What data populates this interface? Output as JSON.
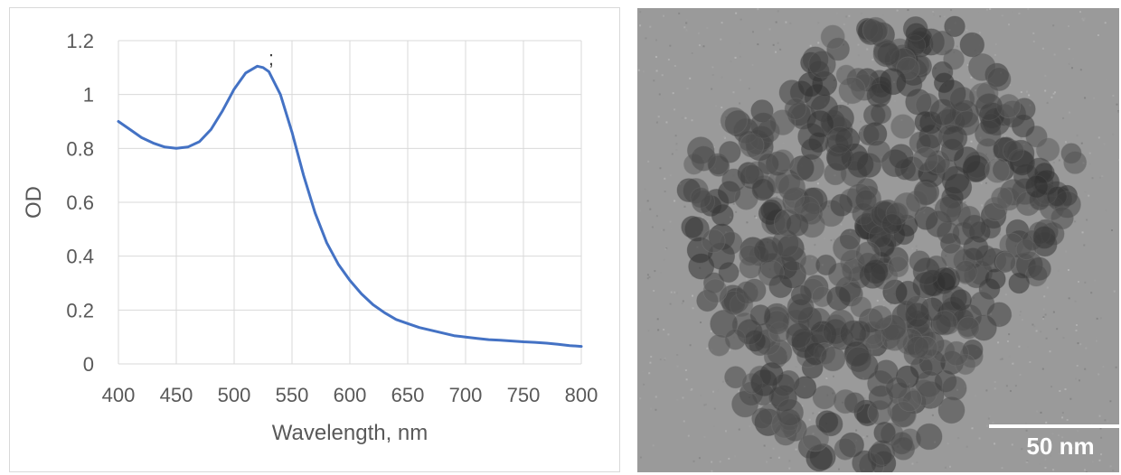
{
  "chart_data": {
    "type": "line",
    "title": "",
    "xlabel": "Wavelength, nm",
    "ylabel": "OD",
    "xlim": [
      400,
      800
    ],
    "ylim": [
      0,
      1.2
    ],
    "x_ticks": [
      "400",
      "450",
      "500",
      "550",
      "600",
      "650",
      "700",
      "750",
      "800"
    ],
    "y_ticks": [
      "0",
      "0.2",
      "0.4",
      "0.6",
      "0.8",
      "1",
      "1.2"
    ],
    "grid": true,
    "legend": "none",
    "annotation": ";",
    "annotation_at": [
      532,
      1.11
    ],
    "series": [
      {
        "color": "#4472c4",
        "x": [
          400,
          410,
          420,
          430,
          440,
          450,
          460,
          470,
          480,
          490,
          500,
          510,
          520,
          525,
          530,
          540,
          550,
          560,
          570,
          580,
          590,
          600,
          610,
          620,
          630,
          640,
          650,
          660,
          670,
          680,
          690,
          700,
          710,
          720,
          730,
          740,
          750,
          760,
          770,
          780,
          790,
          800
        ],
        "y": [
          0.9,
          0.87,
          0.84,
          0.82,
          0.805,
          0.8,
          0.805,
          0.825,
          0.87,
          0.94,
          1.02,
          1.08,
          1.105,
          1.1,
          1.085,
          1.0,
          0.86,
          0.7,
          0.56,
          0.45,
          0.37,
          0.31,
          0.26,
          0.22,
          0.19,
          0.165,
          0.15,
          0.135,
          0.125,
          0.115,
          0.105,
          0.1,
          0.095,
          0.09,
          0.088,
          0.085,
          0.082,
          0.08,
          0.077,
          0.073,
          0.068,
          0.065
        ]
      }
    ]
  },
  "tem_image": {
    "scale_label": "50 nm"
  }
}
